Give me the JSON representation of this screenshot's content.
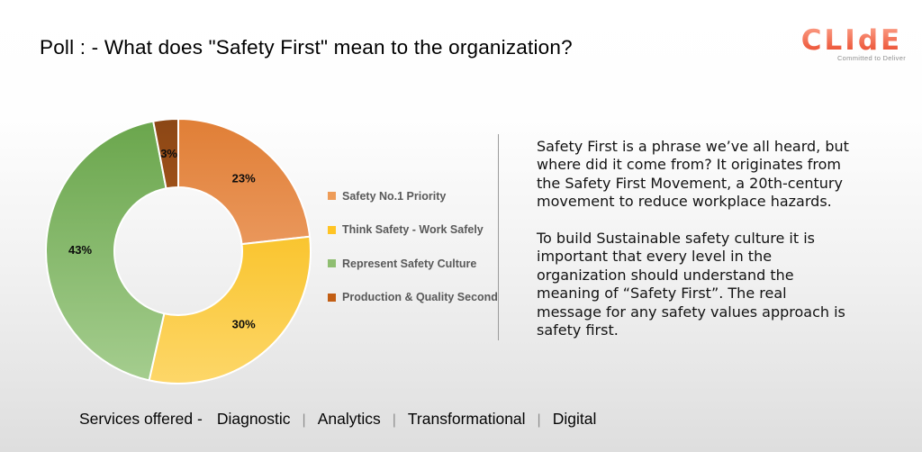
{
  "title": "Poll : - What does \"Safety First\" mean to the organization?",
  "logo": {
    "brand": "CLIdE",
    "tagline": "Committed to Deliver",
    "color_top": "#FB9B83",
    "color_bottom": "#EA4B2D"
  },
  "chart_data": {
    "type": "pie",
    "subtype": "donut",
    "categories": [
      "Safety No.1 Priority",
      "Think Safety - Work Safely",
      "Represent Safety Culture",
      "Production & Quality Second"
    ],
    "values": [
      23,
      30,
      43,
      3
    ],
    "labels": [
      "23%",
      "30%",
      "43%",
      "3%"
    ],
    "unit": "%",
    "colors": [
      "#EE9C58",
      "#FFC424",
      "#8FBE71",
      "#C25E14"
    ],
    "gradients": [
      {
        "top": "#E07E35",
        "bottom": "#F4B285"
      },
      {
        "top": "#F6B600",
        "bottom": "#FDD76A"
      },
      {
        "top": "#69A54B",
        "bottom": "#A6CE90"
      },
      {
        "top": "#8A4615",
        "bottom": "#D06C22"
      }
    ],
    "start_angle_deg": 0,
    "direction": "clockwise",
    "donut_hole_ratio": 0.48,
    "slice_border_color": "#FFFFFF",
    "label_color": "#0D0D0D",
    "legend_position": "right",
    "legend_text_color": "#595959"
  },
  "article": {
    "paragraphs": [
      "Safety First is a phrase we’ve all heard, but\nwhere did it come from? It originates from\nthe Safety First Movement, a 20th-century\nmovement to reduce workplace hazards.",
      "To build Sustainable safety culture it is\nimportant that every level in the\norganization should understand the\nmeaning of “Safety First”. The real\nmessage for any safety values approach is\nsafety first."
    ]
  },
  "footer": {
    "prefix": "Services offered -",
    "items": [
      "Diagnostic",
      "Analytics",
      "Transformational",
      "Digital"
    ],
    "separator": "|"
  }
}
